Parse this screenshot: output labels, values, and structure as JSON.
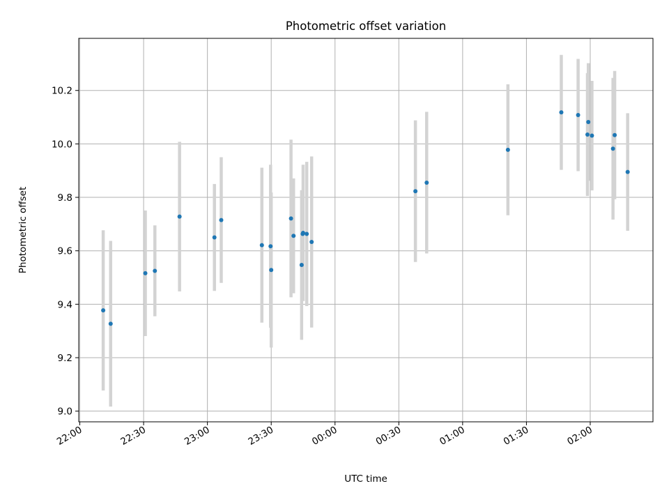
{
  "chart_data": {
    "type": "scatter",
    "title": "Photometric offset variation",
    "xlabel": "UTC time",
    "ylabel": "Photometric offset",
    "x_unit": "minutes",
    "x_ticks": [
      {
        "value": 0,
        "label": "22:00"
      },
      {
        "value": 30,
        "label": "22:30"
      },
      {
        "value": 60,
        "label": "23:00"
      },
      {
        "value": 90,
        "label": "23:30"
      },
      {
        "value": 120,
        "label": "00:00"
      },
      {
        "value": 150,
        "label": "00:30"
      },
      {
        "value": 180,
        "label": "01:00"
      },
      {
        "value": 210,
        "label": "01:30"
      },
      {
        "value": 240,
        "label": "02:00"
      }
    ],
    "y_ticks": [
      9.0,
      9.2,
      9.4,
      9.6,
      9.8,
      10.0,
      10.2
    ],
    "xlim": [
      -0.5,
      269.5
    ],
    "ylim": [
      8.96,
      10.395
    ],
    "grid": true,
    "point_color": "#1f77b4",
    "errorbar_color": "#d3d3d3",
    "points": [
      {
        "x": 11.0,
        "y": 9.377,
        "err": 0.3
      },
      {
        "x": 14.5,
        "y": 9.327,
        "err": 0.31
      },
      {
        "x": 30.8,
        "y": 9.516,
        "err": 0.235
      },
      {
        "x": 35.3,
        "y": 9.525,
        "err": 0.17
      },
      {
        "x": 46.9,
        "y": 9.728,
        "err": 0.28
      },
      {
        "x": 63.3,
        "y": 9.65,
        "err": 0.2
      },
      {
        "x": 66.5,
        "y": 9.715,
        "err": 0.235
      },
      {
        "x": 85.6,
        "y": 9.621,
        "err": 0.29
      },
      {
        "x": 89.7,
        "y": 9.617,
        "err": 0.305
      },
      {
        "x": 90.0,
        "y": 9.528,
        "err": 0.29
      },
      {
        "x": 99.3,
        "y": 9.721,
        "err": 0.295
      },
      {
        "x": 100.5,
        "y": 9.656,
        "err": 0.215
      },
      {
        "x": 104.3,
        "y": 9.547,
        "err": 0.28
      },
      {
        "x": 104.8,
        "y": 9.663,
        "err": 0.155
      },
      {
        "x": 105.0,
        "y": 9.667,
        "err": 0.255
      },
      {
        "x": 106.7,
        "y": 9.663,
        "err": 0.27
      },
      {
        "x": 109.0,
        "y": 9.633,
        "err": 0.32
      },
      {
        "x": 157.8,
        "y": 9.823,
        "err": 0.265
      },
      {
        "x": 163.1,
        "y": 9.855,
        "err": 0.265
      },
      {
        "x": 201.3,
        "y": 9.978,
        "err": 0.245
      },
      {
        "x": 226.4,
        "y": 10.118,
        "err": 0.215
      },
      {
        "x": 234.3,
        "y": 10.108,
        "err": 0.21
      },
      {
        "x": 238.7,
        "y": 10.035,
        "err": 0.23
      },
      {
        "x": 239.1,
        "y": 10.082,
        "err": 0.22
      },
      {
        "x": 240.8,
        "y": 10.031,
        "err": 0.205
      },
      {
        "x": 250.7,
        "y": 9.982,
        "err": 0.265
      },
      {
        "x": 251.5,
        "y": 10.033,
        "err": 0.24
      },
      {
        "x": 257.6,
        "y": 9.895,
        "err": 0.22
      }
    ]
  }
}
